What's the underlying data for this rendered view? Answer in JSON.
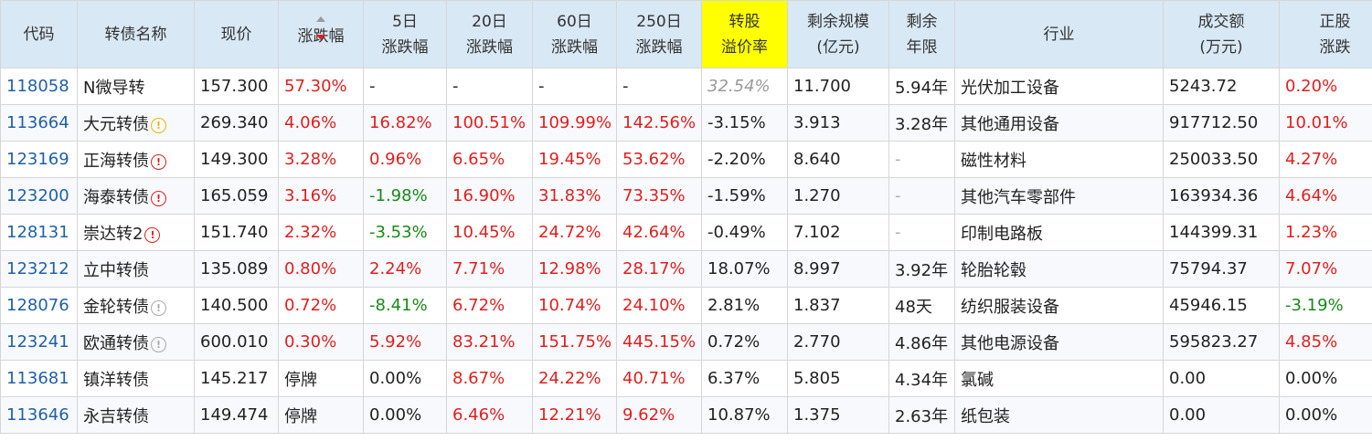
{
  "columns": {
    "code": "代码",
    "name": "转债名称",
    "price": "现价",
    "change": "涨跌幅",
    "chg5_l1": "5日",
    "chg5_l2": "涨跌幅",
    "chg20_l1": "20日",
    "chg20_l2": "涨跌幅",
    "chg60_l1": "60日",
    "chg60_l2": "涨跌幅",
    "chg250_l1": "250日",
    "chg250_l2": "涨跌幅",
    "premium_l1": "转股",
    "premium_l2": "溢价率",
    "scale_l1": "剩余规模",
    "scale_l2": "(亿元)",
    "years_l1": "剩余",
    "years_l2": "年限",
    "industry": "行业",
    "volume_l1": "成交额",
    "volume_l2": "(万元)",
    "stock_l1": "正股",
    "stock_l2": "涨跌"
  },
  "rows": [
    {
      "code": "118058",
      "name": "N微导转",
      "icon": "",
      "price": "157.300",
      "change": "57.30%",
      "chg5": "-",
      "chg20": "-",
      "chg60": "-",
      "chg250": "-",
      "premium": "32.54%",
      "scale": "11.700",
      "years": "5.94年",
      "industry": "光伏加工设备",
      "volume": "5243.72",
      "stock_chg": "0.20%"
    },
    {
      "code": "113664",
      "name": "大元转债",
      "icon": "!",
      "icon_color": "#e8b800",
      "price": "269.340",
      "change": "4.06%",
      "chg5": "16.82%",
      "chg20": "100.51%",
      "chg60": "109.99%",
      "chg250": "142.56%",
      "premium": "-3.15%",
      "scale": "3.913",
      "years": "3.28年",
      "industry": "其他通用设备",
      "volume": "917712.50",
      "stock_chg": "10.01%"
    },
    {
      "code": "123169",
      "name": "正海转债",
      "icon": "!",
      "icon_color": "#e01f1f",
      "price": "149.300",
      "change": "3.28%",
      "chg5": "0.96%",
      "chg20": "6.65%",
      "chg60": "19.45%",
      "chg250": "53.62%",
      "premium": "-2.20%",
      "scale": "8.640",
      "years": "-",
      "industry": "磁性材料",
      "volume": "250033.50",
      "stock_chg": "4.27%"
    },
    {
      "code": "123200",
      "name": "海泰转债",
      "icon": "!",
      "icon_color": "#e01f1f",
      "price": "165.059",
      "change": "3.16%",
      "chg5": "-1.98%",
      "chg20": "16.90%",
      "chg60": "31.83%",
      "chg250": "73.35%",
      "premium": "-1.59%",
      "scale": "1.270",
      "years": "-",
      "industry": "其他汽车零部件",
      "volume": "163934.36",
      "stock_chg": "4.64%"
    },
    {
      "code": "128131",
      "name": "崇达转2",
      "icon": "!",
      "icon_color": "#e01f1f",
      "price": "151.740",
      "change": "2.32%",
      "chg5": "-3.53%",
      "chg20": "10.45%",
      "chg60": "24.72%",
      "chg250": "42.64%",
      "premium": "-0.49%",
      "scale": "7.102",
      "years": "-",
      "industry": "印制电路板",
      "volume": "144399.31",
      "stock_chg": "1.23%"
    },
    {
      "code": "123212",
      "name": "立中转债",
      "icon": "",
      "price": "135.089",
      "change": "0.80%",
      "chg5": "2.24%",
      "chg20": "7.71%",
      "chg60": "12.98%",
      "chg250": "28.17%",
      "premium": "18.07%",
      "scale": "8.997",
      "years": "3.92年",
      "industry": "轮胎轮毂",
      "volume": "75794.37",
      "stock_chg": "7.07%"
    },
    {
      "code": "128076",
      "name": "金轮转债",
      "icon": "!",
      "icon_color": "#aaaaaa",
      "price": "140.500",
      "change": "0.72%",
      "chg5": "-8.41%",
      "chg20": "6.72%",
      "chg60": "10.74%",
      "chg250": "24.10%",
      "premium": "2.81%",
      "scale": "1.837",
      "years": "48天",
      "industry": "纺织服装设备",
      "volume": "45946.15",
      "stock_chg": "-3.19%"
    },
    {
      "code": "123241",
      "name": "欧通转债",
      "icon": "!",
      "icon_color": "#aaaaaa",
      "price": "600.010",
      "change": "0.30%",
      "chg5": "5.92%",
      "chg20": "83.21%",
      "chg60": "151.75%",
      "chg250": "445.15%",
      "premium": "0.72%",
      "scale": "2.770",
      "years": "4.86年",
      "industry": "其他电源设备",
      "volume": "595823.27",
      "stock_chg": "4.85%"
    },
    {
      "code": "113681",
      "name": "镇洋转债",
      "icon": "",
      "price": "145.217",
      "change": "停牌",
      "chg5": "0.00%",
      "chg20": "8.67%",
      "chg60": "24.22%",
      "chg250": "40.71%",
      "premium": "6.37%",
      "scale": "5.805",
      "years": "4.34年",
      "industry": "氯碱",
      "volume": "0.00",
      "stock_chg": "0.00%"
    },
    {
      "code": "113646",
      "name": "永吉转债",
      "icon": "",
      "price": "149.474",
      "change": "停牌",
      "chg5": "0.00%",
      "chg20": "6.46%",
      "chg60": "12.21%",
      "chg250": "9.62%",
      "premium": "10.87%",
      "scale": "1.375",
      "years": "2.63年",
      "industry": "纸包装",
      "volume": "0.00",
      "stock_chg": "0.00%"
    }
  ],
  "colors": {
    "header_bg": "#d9e8f5",
    "highlight_header": "#ffff00",
    "up": "#e01f1f",
    "down": "#178a17",
    "code": "#2060a8"
  }
}
